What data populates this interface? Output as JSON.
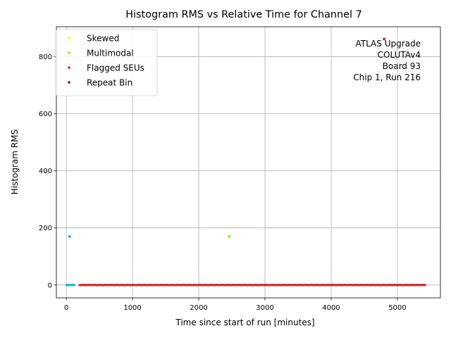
{
  "chart_data": {
    "type": "scatter",
    "title": "Histogram RMS vs Relative Time for Channel 7",
    "xlabel": "Time since start of run [minutes]",
    "ylabel": "Histogram RMS",
    "xlim": [
      -150,
      5650
    ],
    "ylim": [
      -45,
      905
    ],
    "xticks": [
      0,
      1000,
      2000,
      3000,
      4000,
      5000
    ],
    "yticks": [
      0,
      200,
      400,
      600,
      800
    ],
    "grid": true,
    "legend_position": "upper-left",
    "annotation": [
      "ATLAS Upgrade",
      "COLUTAv4",
      "Board 93",
      "Chip 1, Run 216"
    ],
    "series": [
      {
        "name": "Skewed",
        "color": "#ffff00",
        "points": [
          [
            90,
            865
          ]
        ]
      },
      {
        "name": "Multimodal",
        "color": "#7fff00",
        "points": [
          [
            2460,
            170
          ]
        ]
      },
      {
        "name": "Flagged SEUs",
        "color": "#d62728",
        "points": [
          [
            4800,
            862
          ]
        ]
      },
      {
        "name": "Repeat Bin",
        "color": "#800080",
        "points": []
      }
    ],
    "baseline": {
      "cyan_color": "#17becf",
      "red_color": "#d62728",
      "cyan_points": [
        [
          50,
          170
        ]
      ],
      "cyan_range": [
        0,
        120
      ],
      "red_range": [
        200,
        5430
      ],
      "value": 0
    }
  }
}
